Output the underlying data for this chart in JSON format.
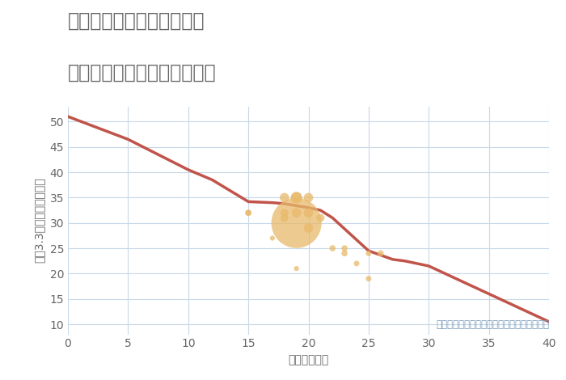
{
  "title_line1": "兵庫県姫路市豊富町甲丘の",
  "title_line2": "築年数別中古マンション価格",
  "xlabel": "築年数（年）",
  "ylabel": "坪（3.3㎡）単価（万円）",
  "annotation": "円の大きさは、取引のあった物件面積を示す",
  "xlim": [
    0,
    40
  ],
  "ylim": [
    8,
    53
  ],
  "xticks": [
    0,
    5,
    10,
    15,
    20,
    25,
    30,
    35,
    40
  ],
  "yticks": [
    10,
    15,
    20,
    25,
    30,
    35,
    40,
    45,
    50
  ],
  "trend_x": [
    0,
    5,
    10,
    12,
    15,
    17,
    18,
    18.5,
    19,
    20,
    21,
    22,
    25,
    27,
    28,
    30,
    35,
    40
  ],
  "trend_y": [
    51,
    46.5,
    40.5,
    38.5,
    34.2,
    34.0,
    33.8,
    33.6,
    33.4,
    33.0,
    32.5,
    31.0,
    24.5,
    22.8,
    22.5,
    21.5,
    16.0,
    10.5
  ],
  "scatter_x": [
    15,
    15,
    17,
    18,
    18,
    18,
    19,
    19,
    19,
    19,
    19,
    20,
    20,
    20,
    21,
    22,
    23,
    23,
    24,
    25,
    25,
    26
  ],
  "scatter_y": [
    32,
    32,
    27,
    32,
    31,
    35,
    21,
    32,
    30,
    35,
    35,
    29,
    32,
    35,
    31,
    25,
    24,
    25,
    22,
    19,
    24,
    24
  ],
  "scatter_size": [
    30,
    30,
    20,
    50,
    50,
    70,
    20,
    70,
    2000,
    100,
    100,
    70,
    70,
    70,
    50,
    30,
    30,
    30,
    25,
    25,
    25,
    30
  ],
  "scatter_color": "#E8B96A",
  "scatter_alpha": 0.75,
  "trend_color": "#C0544A",
  "trend_linewidth": 2.5,
  "bg_color": "#FFFFFF",
  "grid_color": "#C8D8E8",
  "title_color": "#666666",
  "label_color": "#666666",
  "annotation_color": "#7799BB",
  "title_fontsize": 17,
  "label_fontsize": 10,
  "tick_fontsize": 10,
  "annotation_fontsize": 8.5
}
